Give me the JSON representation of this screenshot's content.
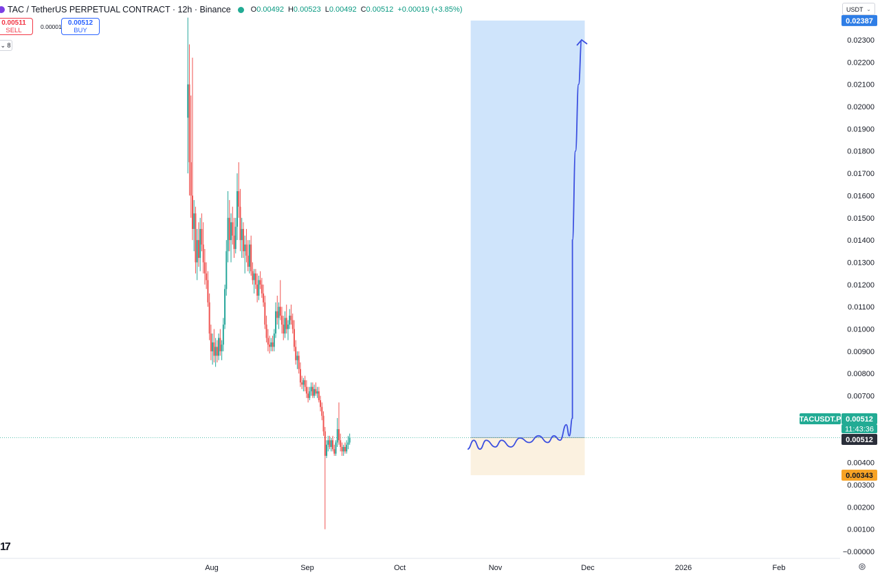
{
  "header": {
    "symbol_title": "TAC / TetherUS PERPETUAL CONTRACT · 12h · Binance",
    "open_label": "O",
    "open_value": "0.00492",
    "high_label": "H",
    "high_value": "0.00523",
    "low_label": "L",
    "low_value": "0.00492",
    "close_label": "C",
    "close_value": "0.00512",
    "change": "+0.00019 (+3.85%)"
  },
  "trade": {
    "sell_price": "0.00511",
    "sell_label": "SELL",
    "spread": "0.00001",
    "buy_price": "0.00512",
    "buy_label": "BUY"
  },
  "indicators_toggle": "8",
  "currency_selector": "USDT",
  "logo_text": "17",
  "colors": {
    "up": "#26a69a",
    "down": "#ef5350",
    "target_zone": "#cfe4fb",
    "stop_zone": "#fbf1e0",
    "projection": "#3b4fe0",
    "current_price_tag": "#22ab94",
    "stop_tag": "#f7a325",
    "target_tag": "#2f7ee6"
  },
  "chart_data": {
    "type": "candlestick",
    "y_axis_labels": [
      "0.02300",
      "0.02200",
      "0.02100",
      "0.02000",
      "0.01900",
      "0.01800",
      "0.01700",
      "0.01600",
      "0.01500",
      "0.01400",
      "0.01300",
      "0.01200",
      "0.01100",
      "0.01000",
      "0.00900",
      "0.00800",
      "0.00700",
      "0.00400",
      "0.00300",
      "0.00200",
      "0.00100",
      "−0.00000"
    ],
    "x_axis_labels": [
      "Aug",
      "Sep",
      "Oct",
      "Nov",
      "Dec",
      "2026",
      "Feb"
    ],
    "ylim": [
      0,
      0.0243
    ],
    "price_tags": {
      "target": "0.02387",
      "current_ticker": "TACUSDT.P",
      "current_price": "0.00512",
      "countdown": "11:43:36",
      "current_price_line": "0.00512",
      "stop": "0.00343"
    },
    "long_position": {
      "start": "2025-10-24",
      "end": "2025-11-30",
      "entry": 0.00512,
      "target": 0.02387,
      "stop": 0.00343
    },
    "projection_path": [
      [
        "2025-10-23",
        0.0046
      ],
      [
        "2025-10-25",
        0.005
      ],
      [
        "2025-10-27",
        0.0046
      ],
      [
        "2025-10-29",
        0.005
      ],
      [
        "2025-11-01",
        0.0047
      ],
      [
        "2025-11-03",
        0.005
      ],
      [
        "2025-11-06",
        0.0047
      ],
      [
        "2025-11-09",
        0.0051
      ],
      [
        "2025-11-12",
        0.0049
      ],
      [
        "2025-11-15",
        0.0052
      ],
      [
        "2025-11-18",
        0.0049
      ],
      [
        "2025-11-20",
        0.0052
      ],
      [
        "2025-11-22",
        0.005
      ],
      [
        "2025-11-24",
        0.0057
      ],
      [
        "2025-11-25",
        0.0052
      ],
      [
        "2025-11-26",
        0.006
      ],
      [
        "2025-11-26",
        0.014
      ],
      [
        "2025-11-27",
        0.018
      ],
      [
        "2025-11-28",
        0.021
      ],
      [
        "2025-11-29",
        0.023
      ]
    ],
    "candles": [
      {
        "t": "2025-07-24",
        "o": 0.0195,
        "h": 0.024,
        "l": 0.017,
        "c": 0.021
      },
      {
        "t": "2025-07-24",
        "o": 0.021,
        "h": 0.0228,
        "l": 0.016,
        "c": 0.0175
      },
      {
        "t": "2025-07-25",
        "o": 0.0175,
        "h": 0.0205,
        "l": 0.015,
        "c": 0.016
      },
      {
        "t": "2025-07-25",
        "o": 0.016,
        "h": 0.0222,
        "l": 0.014,
        "c": 0.0145
      },
      {
        "t": "2025-07-26",
        "o": 0.0145,
        "h": 0.0158,
        "l": 0.0135,
        "c": 0.0152
      },
      {
        "t": "2025-07-26",
        "o": 0.0152,
        "h": 0.0155,
        "l": 0.0125,
        "c": 0.013
      },
      {
        "t": "2025-07-27",
        "o": 0.013,
        "h": 0.0145,
        "l": 0.0122,
        "c": 0.014
      },
      {
        "t": "2025-07-27",
        "o": 0.014,
        "h": 0.0148,
        "l": 0.0128,
        "c": 0.0132
      },
      {
        "t": "2025-07-28",
        "o": 0.0132,
        "h": 0.015,
        "l": 0.0126,
        "c": 0.0145
      },
      {
        "t": "2025-07-28",
        "o": 0.0145,
        "h": 0.0152,
        "l": 0.0135,
        "c": 0.0138
      },
      {
        "t": "2025-07-29",
        "o": 0.0138,
        "h": 0.0148,
        "l": 0.0125,
        "c": 0.013
      },
      {
        "t": "2025-07-29",
        "o": 0.013,
        "h": 0.0136,
        "l": 0.012,
        "c": 0.0125
      },
      {
        "t": "2025-07-30",
        "o": 0.0125,
        "h": 0.013,
        "l": 0.0118,
        "c": 0.0122
      },
      {
        "t": "2025-07-30",
        "o": 0.0122,
        "h": 0.0126,
        "l": 0.011,
        "c": 0.0112
      },
      {
        "t": "2025-07-31",
        "o": 0.0112,
        "h": 0.0116,
        "l": 0.0095,
        "c": 0.0098
      },
      {
        "t": "2025-07-31",
        "o": 0.0098,
        "h": 0.0102,
        "l": 0.0086,
        "c": 0.009
      },
      {
        "t": "2025-08-01",
        "o": 0.009,
        "h": 0.0098,
        "l": 0.0084,
        "c": 0.0094
      },
      {
        "t": "2025-08-01",
        "o": 0.0094,
        "h": 0.01,
        "l": 0.0085,
        "c": 0.0088
      },
      {
        "t": "2025-08-02",
        "o": 0.0088,
        "h": 0.0096,
        "l": 0.0083,
        "c": 0.0092
      },
      {
        "t": "2025-08-02",
        "o": 0.0092,
        "h": 0.0095,
        "l": 0.0085,
        "c": 0.0088
      },
      {
        "t": "2025-08-03",
        "o": 0.0088,
        "h": 0.0098,
        "l": 0.0086,
        "c": 0.0096
      },
      {
        "t": "2025-08-03",
        "o": 0.0096,
        "h": 0.01,
        "l": 0.0088,
        "c": 0.009
      },
      {
        "t": "2025-08-04",
        "o": 0.009,
        "h": 0.0095,
        "l": 0.0086,
        "c": 0.0093
      },
      {
        "t": "2025-08-04",
        "o": 0.0093,
        "h": 0.0105,
        "l": 0.009,
        "c": 0.0102
      },
      {
        "t": "2025-08-05",
        "o": 0.0102,
        "h": 0.012,
        "l": 0.01,
        "c": 0.0118
      },
      {
        "t": "2025-08-05",
        "o": 0.0118,
        "h": 0.014,
        "l": 0.0115,
        "c": 0.0135
      },
      {
        "t": "2025-08-06",
        "o": 0.0135,
        "h": 0.0162,
        "l": 0.013,
        "c": 0.015
      },
      {
        "t": "2025-08-06",
        "o": 0.015,
        "h": 0.0158,
        "l": 0.0135,
        "c": 0.014
      },
      {
        "t": "2025-08-07",
        "o": 0.014,
        "h": 0.0152,
        "l": 0.013,
        "c": 0.0148
      },
      {
        "t": "2025-08-07",
        "o": 0.0148,
        "h": 0.0155,
        "l": 0.0138,
        "c": 0.0142
      },
      {
        "t": "2025-08-08",
        "o": 0.0142,
        "h": 0.015,
        "l": 0.0132,
        "c": 0.0136
      },
      {
        "t": "2025-08-08",
        "o": 0.0136,
        "h": 0.015,
        "l": 0.0134,
        "c": 0.0146
      },
      {
        "t": "2025-08-09",
        "o": 0.0146,
        "h": 0.017,
        "l": 0.014,
        "c": 0.0162
      },
      {
        "t": "2025-08-09",
        "o": 0.0162,
        "h": 0.0175,
        "l": 0.015,
        "c": 0.0155
      },
      {
        "t": "2025-08-10",
        "o": 0.0155,
        "h": 0.0163,
        "l": 0.0135,
        "c": 0.014
      },
      {
        "t": "2025-08-10",
        "o": 0.014,
        "h": 0.015,
        "l": 0.0132,
        "c": 0.0145
      },
      {
        "t": "2025-08-11",
        "o": 0.0145,
        "h": 0.0148,
        "l": 0.0132,
        "c": 0.0135
      },
      {
        "t": "2025-08-11",
        "o": 0.0135,
        "h": 0.0142,
        "l": 0.0125,
        "c": 0.0138
      },
      {
        "t": "2025-08-12",
        "o": 0.0138,
        "h": 0.0145,
        "l": 0.013,
        "c": 0.0133
      },
      {
        "t": "2025-08-12",
        "o": 0.0133,
        "h": 0.014,
        "l": 0.0126,
        "c": 0.0128
      },
      {
        "t": "2025-08-13",
        "o": 0.0128,
        "h": 0.014,
        "l": 0.0125,
        "c": 0.0138
      },
      {
        "t": "2025-08-13",
        "o": 0.0138,
        "h": 0.0142,
        "l": 0.0124,
        "c": 0.0126
      },
      {
        "t": "2025-08-14",
        "o": 0.0126,
        "h": 0.013,
        "l": 0.012,
        "c": 0.0122
      },
      {
        "t": "2025-08-14",
        "o": 0.0122,
        "h": 0.0127,
        "l": 0.0116,
        "c": 0.0125
      },
      {
        "t": "2025-08-15",
        "o": 0.0125,
        "h": 0.0127,
        "l": 0.0118,
        "c": 0.012
      },
      {
        "t": "2025-08-15",
        "o": 0.012,
        "h": 0.0125,
        "l": 0.0112,
        "c": 0.0115
      },
      {
        "t": "2025-08-16",
        "o": 0.0115,
        "h": 0.0124,
        "l": 0.0113,
        "c": 0.0122
      },
      {
        "t": "2025-08-16",
        "o": 0.0122,
        "h": 0.0126,
        "l": 0.0118,
        "c": 0.012
      },
      {
        "t": "2025-08-17",
        "o": 0.012,
        "h": 0.0123,
        "l": 0.0114,
        "c": 0.0116
      },
      {
        "t": "2025-08-17",
        "o": 0.0116,
        "h": 0.012,
        "l": 0.011,
        "c": 0.0112
      },
      {
        "t": "2025-08-18",
        "o": 0.0112,
        "h": 0.0115,
        "l": 0.01,
        "c": 0.0102
      },
      {
        "t": "2025-08-18",
        "o": 0.0102,
        "h": 0.0106,
        "l": 0.0094,
        "c": 0.0096
      },
      {
        "t": "2025-08-19",
        "o": 0.0096,
        "h": 0.01,
        "l": 0.009,
        "c": 0.0093
      },
      {
        "t": "2025-08-19",
        "o": 0.0093,
        "h": 0.0097,
        "l": 0.0089,
        "c": 0.0092
      },
      {
        "t": "2025-08-20",
        "o": 0.0092,
        "h": 0.0096,
        "l": 0.009,
        "c": 0.0094
      },
      {
        "t": "2025-08-20",
        "o": 0.0094,
        "h": 0.0097,
        "l": 0.009,
        "c": 0.0092
      },
      {
        "t": "2025-08-21",
        "o": 0.0092,
        "h": 0.01,
        "l": 0.009,
        "c": 0.0098
      },
      {
        "t": "2025-08-21",
        "o": 0.0098,
        "h": 0.0112,
        "l": 0.0096,
        "c": 0.0108
      },
      {
        "t": "2025-08-22",
        "o": 0.0108,
        "h": 0.0115,
        "l": 0.0102,
        "c": 0.0105
      },
      {
        "t": "2025-08-22",
        "o": 0.0105,
        "h": 0.0112,
        "l": 0.01,
        "c": 0.011
      },
      {
        "t": "2025-08-23",
        "o": 0.011,
        "h": 0.0122,
        "l": 0.0104,
        "c": 0.0106
      },
      {
        "t": "2025-08-23",
        "o": 0.0106,
        "h": 0.011,
        "l": 0.0098,
        "c": 0.0102
      },
      {
        "t": "2025-08-24",
        "o": 0.0102,
        "h": 0.0106,
        "l": 0.0095,
        "c": 0.0098
      },
      {
        "t": "2025-08-24",
        "o": 0.0098,
        "h": 0.0108,
        "l": 0.0096,
        "c": 0.0105
      },
      {
        "t": "2025-08-25",
        "o": 0.0105,
        "h": 0.0111,
        "l": 0.0098,
        "c": 0.01
      },
      {
        "t": "2025-08-25",
        "o": 0.01,
        "h": 0.0104,
        "l": 0.0095,
        "c": 0.0102
      },
      {
        "t": "2025-08-26",
        "o": 0.0102,
        "h": 0.0109,
        "l": 0.01,
        "c": 0.0106
      },
      {
        "t": "2025-08-26",
        "o": 0.0106,
        "h": 0.0111,
        "l": 0.0102,
        "c": 0.0104
      },
      {
        "t": "2025-08-27",
        "o": 0.0104,
        "h": 0.0107,
        "l": 0.0098,
        "c": 0.01
      },
      {
        "t": "2025-08-27",
        "o": 0.01,
        "h": 0.0104,
        "l": 0.009,
        "c": 0.0092
      },
      {
        "t": "2025-08-28",
        "o": 0.0092,
        "h": 0.0095,
        "l": 0.0084,
        "c": 0.0086
      },
      {
        "t": "2025-08-28",
        "o": 0.0086,
        "h": 0.009,
        "l": 0.0082,
        "c": 0.0088
      },
      {
        "t": "2025-08-29",
        "o": 0.0088,
        "h": 0.009,
        "l": 0.008,
        "c": 0.0082
      },
      {
        "t": "2025-08-29",
        "o": 0.0082,
        "h": 0.0085,
        "l": 0.0074,
        "c": 0.0076
      },
      {
        "t": "2025-08-30",
        "o": 0.0076,
        "h": 0.0079,
        "l": 0.0073,
        "c": 0.0075
      },
      {
        "t": "2025-08-30",
        "o": 0.0075,
        "h": 0.0078,
        "l": 0.0072,
        "c": 0.0077
      },
      {
        "t": "2025-08-31",
        "o": 0.0077,
        "h": 0.0079,
        "l": 0.0072,
        "c": 0.0074
      },
      {
        "t": "2025-08-31",
        "o": 0.0074,
        "h": 0.0077,
        "l": 0.0069,
        "c": 0.0071
      },
      {
        "t": "2025-09-01",
        "o": 0.0071,
        "h": 0.0074,
        "l": 0.0067,
        "c": 0.0069
      },
      {
        "t": "2025-09-01",
        "o": 0.0069,
        "h": 0.0074,
        "l": 0.0068,
        "c": 0.0072
      },
      {
        "t": "2025-09-02",
        "o": 0.0072,
        "h": 0.0076,
        "l": 0.007,
        "c": 0.0074
      },
      {
        "t": "2025-09-02",
        "o": 0.0074,
        "h": 0.0076,
        "l": 0.0069,
        "c": 0.007
      },
      {
        "t": "2025-09-03",
        "o": 0.007,
        "h": 0.0075,
        "l": 0.0069,
        "c": 0.0073
      },
      {
        "t": "2025-09-03",
        "o": 0.0073,
        "h": 0.0076,
        "l": 0.007,
        "c": 0.0071
      },
      {
        "t": "2025-09-04",
        "o": 0.0071,
        "h": 0.0074,
        "l": 0.0069,
        "c": 0.0072
      },
      {
        "t": "2025-09-04",
        "o": 0.0072,
        "h": 0.0074,
        "l": 0.0067,
        "c": 0.0068
      },
      {
        "t": "2025-09-05",
        "o": 0.0068,
        "h": 0.007,
        "l": 0.0063,
        "c": 0.0065
      },
      {
        "t": "2025-09-05",
        "o": 0.0065,
        "h": 0.0067,
        "l": 0.0059,
        "c": 0.0061
      },
      {
        "t": "2025-09-06",
        "o": 0.0061,
        "h": 0.0063,
        "l": 0.0052,
        "c": 0.0054
      },
      {
        "t": "2025-09-06",
        "o": 0.0054,
        "h": 0.0056,
        "l": 0.001,
        "c": 0.0043
      },
      {
        "t": "2025-09-07",
        "o": 0.0043,
        "h": 0.005,
        "l": 0.0042,
        "c": 0.0048
      },
      {
        "t": "2025-09-07",
        "o": 0.0048,
        "h": 0.0052,
        "l": 0.0045,
        "c": 0.005
      },
      {
        "t": "2025-09-08",
        "o": 0.005,
        "h": 0.0052,
        "l": 0.0046,
        "c": 0.0047
      },
      {
        "t": "2025-09-08",
        "o": 0.0047,
        "h": 0.0051,
        "l": 0.0045,
        "c": 0.005
      },
      {
        "t": "2025-09-09",
        "o": 0.005,
        "h": 0.0052,
        "l": 0.0045,
        "c": 0.0046
      },
      {
        "t": "2025-09-09",
        "o": 0.0046,
        "h": 0.0048,
        "l": 0.0043,
        "c": 0.0044
      },
      {
        "t": "2025-09-10",
        "o": 0.0044,
        "h": 0.005,
        "l": 0.0043,
        "c": 0.0049
      },
      {
        "t": "2025-09-10",
        "o": 0.0049,
        "h": 0.006,
        "l": 0.0047,
        "c": 0.0055
      },
      {
        "t": "2025-09-11",
        "o": 0.0055,
        "h": 0.0067,
        "l": 0.0048,
        "c": 0.005
      },
      {
        "t": "2025-09-11",
        "o": 0.005,
        "h": 0.0053,
        "l": 0.0045,
        "c": 0.0047
      },
      {
        "t": "2025-09-12",
        "o": 0.0047,
        "h": 0.0049,
        "l": 0.0043,
        "c": 0.0045
      },
      {
        "t": "2025-09-12",
        "o": 0.0045,
        "h": 0.0048,
        "l": 0.0043,
        "c": 0.0047
      },
      {
        "t": "2025-09-13",
        "o": 0.0047,
        "h": 0.0049,
        "l": 0.0044,
        "c": 0.0045
      },
      {
        "t": "2025-09-13",
        "o": 0.0045,
        "h": 0.005,
        "l": 0.0044,
        "c": 0.0048
      },
      {
        "t": "2025-09-14",
        "o": 0.0048,
        "h": 0.0052,
        "l": 0.0046,
        "c": 0.0049
      },
      {
        "t": "2025-09-14",
        "o": 0.0049,
        "h": 0.0053,
        "l": 0.0048,
        "c": 0.0051
      }
    ]
  }
}
